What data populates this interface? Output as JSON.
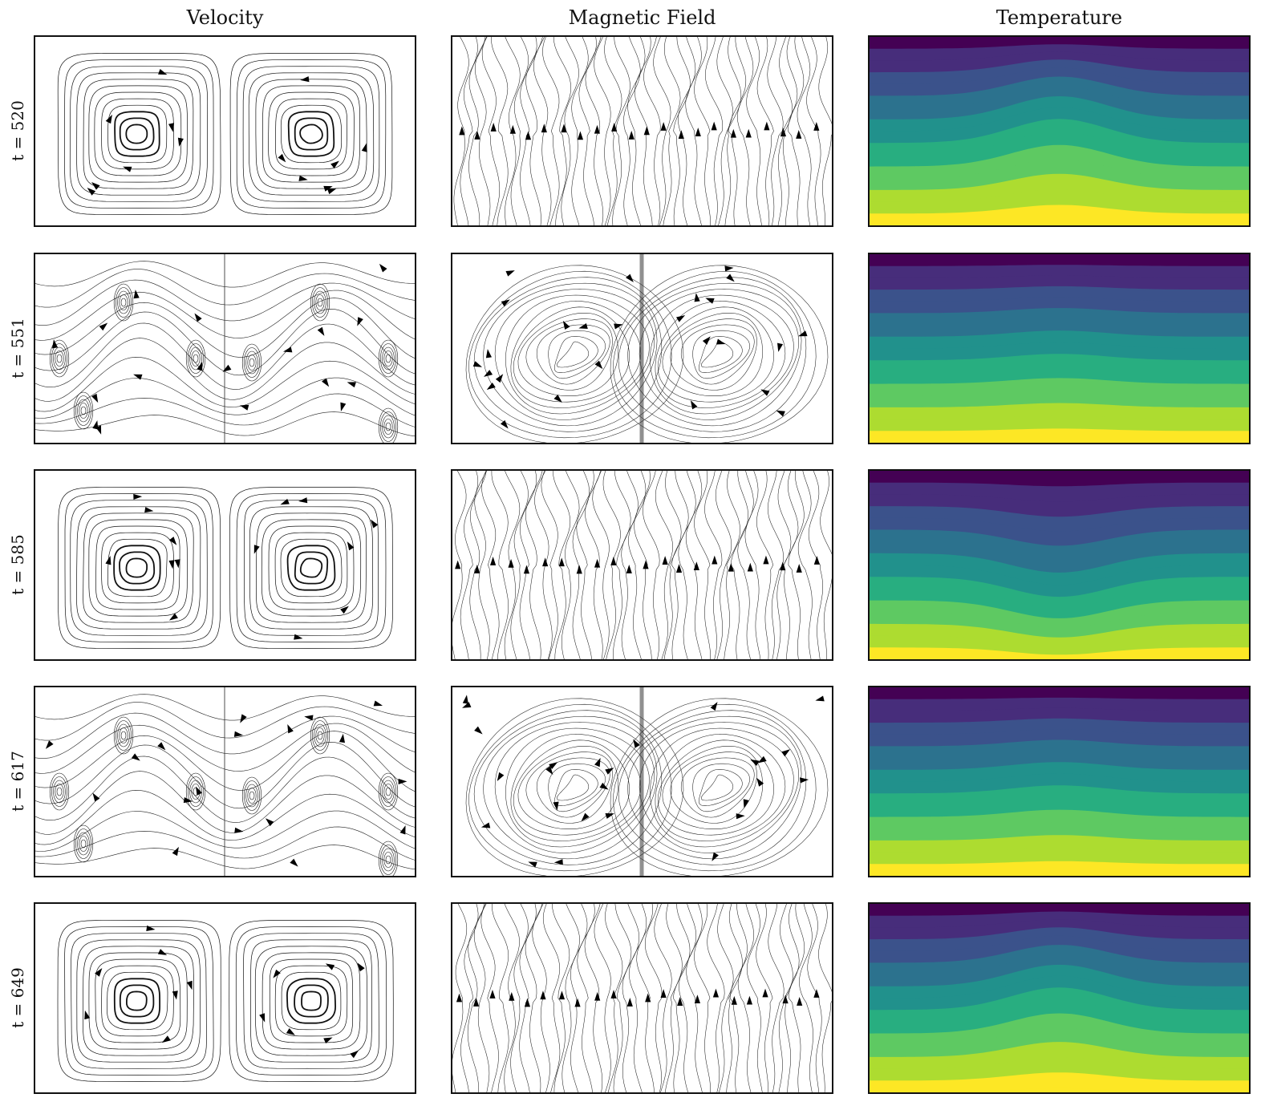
{
  "columns": [
    {
      "id": "velocity",
      "title": "Velocity"
    },
    {
      "id": "magnetic",
      "title": "Magnetic Field"
    },
    {
      "id": "temperature",
      "title": "Temperature"
    }
  ],
  "rows": [
    {
      "label": "t = 520",
      "regime": "steady"
    },
    {
      "label": "t = 551",
      "regime": "turbulent"
    },
    {
      "label": "t = 585",
      "regime": "steady"
    },
    {
      "label": "t = 617",
      "regime": "turbulent"
    },
    {
      "label": "t = 649",
      "regime": "steady"
    }
  ],
  "colormap": [
    "#440154",
    "#472d7b",
    "#3b528b",
    "#2c728e",
    "#21918c",
    "#28ae80",
    "#5ec962",
    "#addc30",
    "#fde725"
  ]
}
